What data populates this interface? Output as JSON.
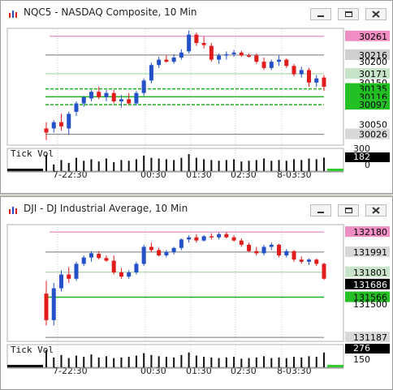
{
  "windows": [
    {
      "title": "NQC5 - NASDAQ Composite, 10 Min",
      "price_labels": [
        {
          "text": "30261",
          "bg": "#ef8ec2",
          "fg": "#000000"
        },
        {
          "text": "30216",
          "bg": "#cfcfcf",
          "fg": "#000000"
        },
        {
          "text": "30200",
          "bg": "",
          "fg": "#000000"
        },
        {
          "text": "30171",
          "bg": "#c8e4c8",
          "fg": "#000000"
        },
        {
          "text": "30150",
          "bg": "",
          "fg": "#000000"
        },
        {
          "text": "30135",
          "bg": "#22c022",
          "fg": "#000000"
        },
        {
          "text": "30116",
          "bg": "#22c022",
          "fg": "#000000"
        },
        {
          "text": "30097",
          "bg": "#22c022",
          "fg": "#000000"
        },
        {
          "text": "30050",
          "bg": "",
          "fg": "#000000"
        },
        {
          "text": "30026",
          "bg": "#d8d8d8",
          "fg": "#000000"
        }
      ],
      "volume_label": "Tick Vol",
      "volume_scale": [
        "300",
        "182",
        "0"
      ],
      "time_labels": [
        "7-22:30",
        "00:30",
        "01:30",
        "02:30",
        "8-03:30"
      ],
      "price_min": 30000,
      "price_max": 30280,
      "candles": [
        {
          "o": 30030,
          "h": 30055,
          "l": 30012,
          "c": 30040,
          "col": "red"
        },
        {
          "o": 30040,
          "h": 30060,
          "l": 30030,
          "c": 30055,
          "col": "blue"
        },
        {
          "o": 30055,
          "h": 30075,
          "l": 30035,
          "c": 30045,
          "col": "red"
        },
        {
          "o": 30040,
          "h": 30080,
          "l": 30025,
          "c": 30075,
          "col": "blue"
        },
        {
          "o": 30080,
          "h": 30105,
          "l": 30070,
          "c": 30100,
          "col": "blue"
        },
        {
          "o": 30100,
          "h": 30118,
          "l": 30092,
          "c": 30115,
          "col": "blue"
        },
        {
          "o": 30112,
          "h": 30132,
          "l": 30105,
          "c": 30128,
          "col": "blue"
        },
        {
          "o": 30128,
          "h": 30140,
          "l": 30110,
          "c": 30115,
          "col": "red"
        },
        {
          "o": 30115,
          "h": 30132,
          "l": 30105,
          "c": 30125,
          "col": "blue"
        },
        {
          "o": 30125,
          "h": 30132,
          "l": 30100,
          "c": 30105,
          "col": "red"
        },
        {
          "o": 30105,
          "h": 30120,
          "l": 30090,
          "c": 30110,
          "col": "blue"
        },
        {
          "o": 30110,
          "h": 30125,
          "l": 30098,
          "c": 30100,
          "col": "red"
        },
        {
          "o": 30100,
          "h": 30130,
          "l": 30095,
          "c": 30125,
          "col": "blue"
        },
        {
          "o": 30125,
          "h": 30160,
          "l": 30118,
          "c": 30155,
          "col": "blue"
        },
        {
          "o": 30155,
          "h": 30198,
          "l": 30148,
          "c": 30192,
          "col": "blue"
        },
        {
          "o": 30192,
          "h": 30212,
          "l": 30185,
          "c": 30205,
          "col": "blue"
        },
        {
          "o": 30205,
          "h": 30215,
          "l": 30198,
          "c": 30200,
          "col": "red"
        },
        {
          "o": 30200,
          "h": 30218,
          "l": 30195,
          "c": 30210,
          "col": "blue"
        },
        {
          "o": 30210,
          "h": 30230,
          "l": 30205,
          "c": 30222,
          "col": "blue"
        },
        {
          "o": 30225,
          "h": 30275,
          "l": 30220,
          "c": 30265,
          "col": "blue"
        },
        {
          "o": 30265,
          "h": 30270,
          "l": 30238,
          "c": 30245,
          "col": "red"
        },
        {
          "o": 30245,
          "h": 30260,
          "l": 30232,
          "c": 30240,
          "col": "red"
        },
        {
          "o": 30238,
          "h": 30245,
          "l": 30200,
          "c": 30205,
          "col": "red"
        },
        {
          "o": 30205,
          "h": 30220,
          "l": 30195,
          "c": 30215,
          "col": "blue"
        },
        {
          "o": 30215,
          "h": 30225,
          "l": 30205,
          "c": 30218,
          "col": "blue"
        },
        {
          "o": 30218,
          "h": 30228,
          "l": 30212,
          "c": 30222,
          "col": "blue"
        },
        {
          "o": 30222,
          "h": 30226,
          "l": 30212,
          "c": 30215,
          "col": "red"
        },
        {
          "o": 30215,
          "h": 30220,
          "l": 30210,
          "c": 30214,
          "col": "red"
        },
        {
          "o": 30215,
          "h": 30220,
          "l": 30195,
          "c": 30200,
          "col": "red"
        },
        {
          "o": 30200,
          "h": 30210,
          "l": 30180,
          "c": 30185,
          "col": "red"
        },
        {
          "o": 30185,
          "h": 30205,
          "l": 30180,
          "c": 30200,
          "col": "blue"
        },
        {
          "o": 30200,
          "h": 30215,
          "l": 30190,
          "c": 30205,
          "col": "blue"
        },
        {
          "o": 30205,
          "h": 30208,
          "l": 30185,
          "c": 30190,
          "col": "red"
        },
        {
          "o": 30190,
          "h": 30195,
          "l": 30165,
          "c": 30170,
          "col": "red"
        },
        {
          "o": 30170,
          "h": 30188,
          "l": 30162,
          "c": 30180,
          "col": "blue"
        },
        {
          "o": 30180,
          "h": 30185,
          "l": 30140,
          "c": 30150,
          "col": "red"
        },
        {
          "o": 30150,
          "h": 30168,
          "l": 30140,
          "c": 30160,
          "col": "blue"
        },
        {
          "o": 30162,
          "h": 30168,
          "l": 30130,
          "c": 30140,
          "col": "red"
        }
      ],
      "volumes": [
        220,
        90,
        150,
        110,
        180,
        140,
        160,
        130,
        170,
        120,
        150,
        140,
        160,
        210,
        180,
        170,
        160,
        150,
        180,
        230,
        180,
        160,
        150,
        140,
        150,
        160,
        130,
        140,
        150,
        170,
        140,
        150,
        140,
        160,
        150,
        170,
        160,
        182
      ]
    },
    {
      "title": "DJI - DJ Industrial Average, 10 Min",
      "price_labels": [
        {
          "text": "132180",
          "bg": "#ef8ec2",
          "fg": "#000000"
        },
        {
          "text": "131991",
          "bg": "#d8d8d8",
          "fg": "#000000"
        },
        {
          "text": "131801",
          "bg": "#c8e4c8",
          "fg": "#000000"
        },
        {
          "text": "131686",
          "bg": "#000000",
          "fg": "#ffffff"
        },
        {
          "text": "131566",
          "bg": "#22c022",
          "fg": "#000000"
        },
        {
          "text": "131500",
          "bg": "",
          "fg": "#000000"
        },
        {
          "text": "131187",
          "bg": "#d8d8d8",
          "fg": "#000000"
        }
      ],
      "volume_label": "Tick Vol",
      "volume_scale": [
        "276",
        "150"
      ],
      "time_labels": [
        "7-22:30",
        "00:30",
        "01:30",
        "02:30",
        "8-03:30"
      ],
      "price_min": 131150,
      "price_max": 132250,
      "candles": [
        {
          "o": 131600,
          "h": 131720,
          "l": 131300,
          "c": 131350,
          "col": "red"
        },
        {
          "o": 131350,
          "h": 131700,
          "l": 131300,
          "c": 131650,
          "col": "blue"
        },
        {
          "o": 131650,
          "h": 131820,
          "l": 131620,
          "c": 131780,
          "col": "blue"
        },
        {
          "o": 131780,
          "h": 131850,
          "l": 131700,
          "c": 131740,
          "col": "red"
        },
        {
          "o": 131740,
          "h": 131900,
          "l": 131720,
          "c": 131880,
          "col": "blue"
        },
        {
          "o": 131880,
          "h": 131960,
          "l": 131860,
          "c": 131940,
          "col": "blue"
        },
        {
          "o": 131940,
          "h": 132000,
          "l": 131900,
          "c": 131980,
          "col": "blue"
        },
        {
          "o": 131975,
          "h": 132000,
          "l": 131920,
          "c": 131935,
          "col": "red"
        },
        {
          "o": 131935,
          "h": 131960,
          "l": 131900,
          "c": 131910,
          "col": "red"
        },
        {
          "o": 131910,
          "h": 131960,
          "l": 131780,
          "c": 131800,
          "col": "red"
        },
        {
          "o": 131800,
          "h": 131840,
          "l": 131740,
          "c": 131760,
          "col": "red"
        },
        {
          "o": 131760,
          "h": 131820,
          "l": 131740,
          "c": 131800,
          "col": "blue"
        },
        {
          "o": 131800,
          "h": 131900,
          "l": 131780,
          "c": 131880,
          "col": "blue"
        },
        {
          "o": 131880,
          "h": 132060,
          "l": 131860,
          "c": 132040,
          "col": "blue"
        },
        {
          "o": 132040,
          "h": 132080,
          "l": 131990,
          "c": 132010,
          "col": "red"
        },
        {
          "o": 132010,
          "h": 132030,
          "l": 131950,
          "c": 131960,
          "col": "red"
        },
        {
          "o": 131960,
          "h": 132010,
          "l": 131940,
          "c": 131990,
          "col": "blue"
        },
        {
          "o": 131990,
          "h": 132040,
          "l": 131970,
          "c": 132030,
          "col": "blue"
        },
        {
          "o": 132030,
          "h": 132120,
          "l": 132010,
          "c": 132110,
          "col": "blue"
        },
        {
          "o": 132110,
          "h": 132150,
          "l": 132080,
          "c": 132130,
          "col": "blue"
        },
        {
          "o": 132130,
          "h": 132160,
          "l": 132080,
          "c": 132100,
          "col": "red"
        },
        {
          "o": 132100,
          "h": 132150,
          "l": 132090,
          "c": 132140,
          "col": "blue"
        },
        {
          "o": 132140,
          "h": 132170,
          "l": 132110,
          "c": 132130,
          "col": "red"
        },
        {
          "o": 132130,
          "h": 132175,
          "l": 132110,
          "c": 132160,
          "col": "blue"
        },
        {
          "o": 132160,
          "h": 132180,
          "l": 132120,
          "c": 132130,
          "col": "red"
        },
        {
          "o": 132130,
          "h": 132150,
          "l": 132090,
          "c": 132100,
          "col": "red"
        },
        {
          "o": 132100,
          "h": 132120,
          "l": 132040,
          "c": 132060,
          "col": "red"
        },
        {
          "o": 132060,
          "h": 132080,
          "l": 131990,
          "c": 132000,
          "col": "red"
        },
        {
          "o": 132000,
          "h": 132040,
          "l": 131960,
          "c": 131980,
          "col": "red"
        },
        {
          "o": 131980,
          "h": 132060,
          "l": 131960,
          "c": 132040,
          "col": "blue"
        },
        {
          "o": 132040,
          "h": 132080,
          "l": 132010,
          "c": 132060,
          "col": "blue"
        },
        {
          "o": 132060,
          "h": 132070,
          "l": 131940,
          "c": 131960,
          "col": "red"
        },
        {
          "o": 131960,
          "h": 132020,
          "l": 131940,
          "c": 132000,
          "col": "blue"
        },
        {
          "o": 132000,
          "h": 132010,
          "l": 131900,
          "c": 131920,
          "col": "red"
        },
        {
          "o": 131920,
          "h": 131950,
          "l": 131880,
          "c": 131900,
          "col": "red"
        },
        {
          "o": 131900,
          "h": 131930,
          "l": 131870,
          "c": 131920,
          "col": "blue"
        },
        {
          "o": 131920,
          "h": 131930,
          "l": 131860,
          "c": 131880,
          "col": "red"
        },
        {
          "o": 131880,
          "h": 131890,
          "l": 131730,
          "c": 131740,
          "col": "red"
        }
      ],
      "volumes": [
        276,
        160,
        200,
        150,
        190,
        170,
        210,
        160,
        180,
        150,
        160,
        170,
        190,
        230,
        200,
        180,
        170,
        160,
        200,
        240,
        190,
        170,
        160,
        150,
        160,
        170,
        140,
        150,
        160,
        180,
        150,
        160,
        150,
        170,
        160,
        180,
        170,
        240
      ]
    }
  ],
  "colors": {
    "up": "#2450c8",
    "down": "#e01c1c",
    "green_line": "#20b020",
    "pink_line": "#e070c0",
    "grid": "#c8c8c8"
  }
}
